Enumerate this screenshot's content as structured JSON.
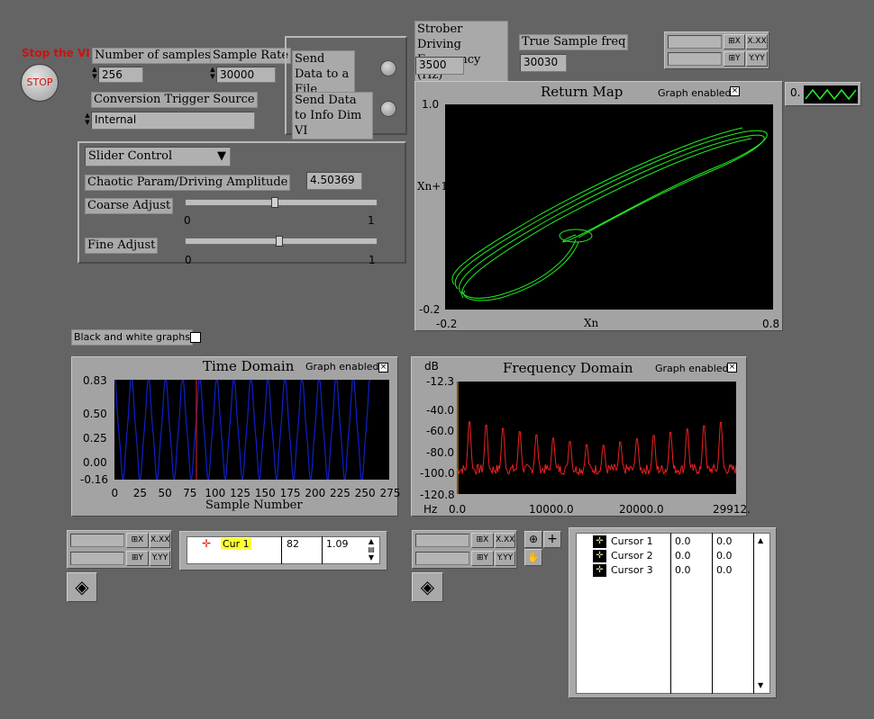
{
  "stop": {
    "title": "Stop the VI",
    "button": "STOP"
  },
  "controls": {
    "num_samples_label": "Number of samples",
    "num_samples_value": "256",
    "sample_rate_label": "Sample Rate",
    "sample_rate_value": "30000",
    "trigger_label": "Conversion Trigger Source",
    "trigger_value": "Internal",
    "send_file_label": "Send Data to a File",
    "send_info_label": "Send Data to Info Dim VI",
    "strober_label": "Strober Driving Frequency (Hz)",
    "strober_value": "3500",
    "true_freq_label": "True Sample freq",
    "true_freq_value": "30030",
    "slider_mode": "Slider Control",
    "chaotic_label": "Chaotic Param/Driving Amplitude",
    "chaotic_value": "4.50369",
    "coarse_label": "Coarse Adjust",
    "fine_label": "Fine Adjust",
    "slider_min": "0",
    "slider_max": "1",
    "coarse_level": 0.5,
    "fine_level": 0.5,
    "bw_label": "Black and white graphs",
    "palette_value": "0."
  },
  "return_map": {
    "title": "Return Map",
    "enabled_label": "Graph enabled",
    "ylabel": "Xn+1",
    "xlabel": "Xn",
    "y_ticks": [
      "1.0",
      "-0.2"
    ],
    "x_ticks": [
      "-0.2",
      "0.8"
    ],
    "trace_color": "#22ee22"
  },
  "time_domain": {
    "title": "Time Domain",
    "enabled_label": "Graph enabled",
    "xlabel": "Sample Number",
    "y_ticks": [
      "0.83",
      "0.50",
      "0.25",
      "0.00",
      "-0.16"
    ],
    "x_ticks": [
      "0",
      "25",
      "50",
      "75",
      "100",
      "125",
      "150",
      "175",
      "200",
      "225",
      "250",
      "275"
    ],
    "trace_color": "#1020c8",
    "cursor_color": "#e02020"
  },
  "freq_domain": {
    "title": "Frequency Domain",
    "enabled_label": "Graph enabled",
    "unit_y": "dB",
    "unit_x": "Hz",
    "y_ticks": [
      "-12.3",
      "-40.0",
      "-60.0",
      "-80.0",
      "-100.0",
      "-120.8"
    ],
    "x_ticks": [
      "0.0",
      "10000.0",
      "20000.0",
      "29912."
    ],
    "trace_color": "#ee2020"
  },
  "scale_legend": {
    "x_btn": "X.XX",
    "y_btn": "Y.YY"
  },
  "cursor_list_time": {
    "name": "Cur 1",
    "x": "82",
    "y": "1.09"
  },
  "cursor_list_freq": [
    {
      "name": "Cursor 1",
      "x": "0.0",
      "y": "0.0"
    },
    {
      "name": "Cursor 2",
      "x": "0.0",
      "y": "0.0"
    },
    {
      "name": "Cursor 3",
      "x": "0.0",
      "y": "0.0"
    }
  ],
  "chart_data": [
    {
      "type": "scatter",
      "title": "Return Map",
      "xlabel": "Xn",
      "ylabel": "Xn+1",
      "xlim": [
        -0.2,
        0.8
      ],
      "ylim": [
        -0.2,
        1.0
      ]
    },
    {
      "type": "line",
      "title": "Time Domain",
      "xlabel": "Sample Number",
      "xlim": [
        0,
        275
      ],
      "ylim": [
        -0.16,
        0.83
      ],
      "cursor_x": 82
    },
    {
      "type": "line",
      "title": "Frequency Domain",
      "xlabel": "Hz",
      "ylabel": "dB",
      "xlim": [
        0,
        29912
      ],
      "ylim": [
        -120.8,
        -12.3
      ]
    }
  ]
}
